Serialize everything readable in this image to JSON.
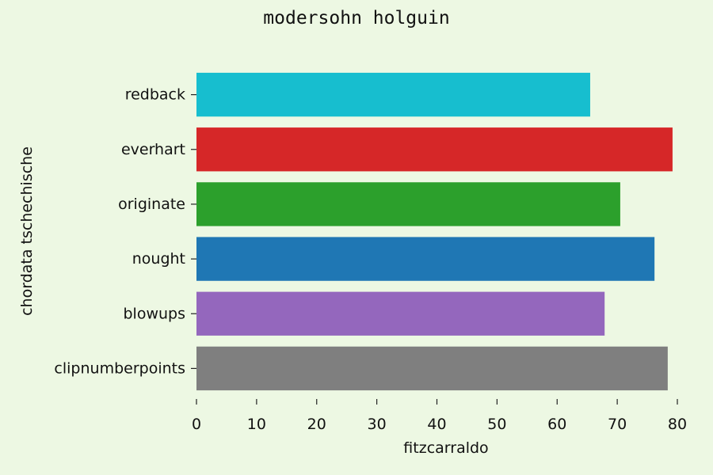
{
  "chart_data": {
    "type": "bar",
    "orientation": "horizontal",
    "title": "modersohn holguin",
    "xlabel": "fitzcarraldo",
    "ylabel": "chordata tschechische",
    "categories": [
      "redback",
      "everhart",
      "originate",
      "nought",
      "blowups",
      "clipnumberpoints"
    ],
    "values": [
      65.5,
      79.2,
      70.5,
      76.2,
      67.9,
      78.4
    ],
    "colors": [
      "#17becf",
      "#d62728",
      "#2ca02c",
      "#1f77b4",
      "#9467bd",
      "#7f7f7f"
    ],
    "xticks": [
      "0",
      "10",
      "20",
      "30",
      "40",
      "50",
      "60",
      "70",
      "80"
    ],
    "xlim": [
      0,
      80
    ],
    "grid": false,
    "background": "#edf8e3"
  }
}
